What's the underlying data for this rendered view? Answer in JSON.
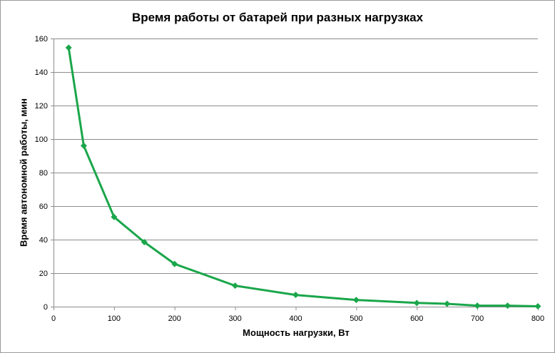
{
  "chart_data": {
    "type": "line",
    "title": "Время работы  от батарей  при разных  нагрузках",
    "xlabel": "Мощность нагрузки, Вт",
    "ylabel": "Время автономной работы, мин",
    "xlim": [
      0,
      800
    ],
    "ylim": [
      0,
      160
    ],
    "xticks": [
      0,
      100,
      200,
      300,
      400,
      500,
      600,
      700,
      800
    ],
    "yticks": [
      0,
      20,
      40,
      60,
      80,
      100,
      120,
      140,
      160
    ],
    "grid": "horizontal",
    "legend": "none",
    "series": [
      {
        "color": "#1aa64a",
        "marker": "diamond",
        "x": [
          25,
          50,
          100,
          150,
          200,
          300,
          400,
          500,
          600,
          650,
          700,
          750,
          800
        ],
        "y": [
          154.5,
          96,
          53.5,
          38.5,
          25.5,
          12.5,
          7,
          4,
          2.2,
          1.7,
          0.6,
          0.6,
          0.2
        ]
      }
    ]
  }
}
